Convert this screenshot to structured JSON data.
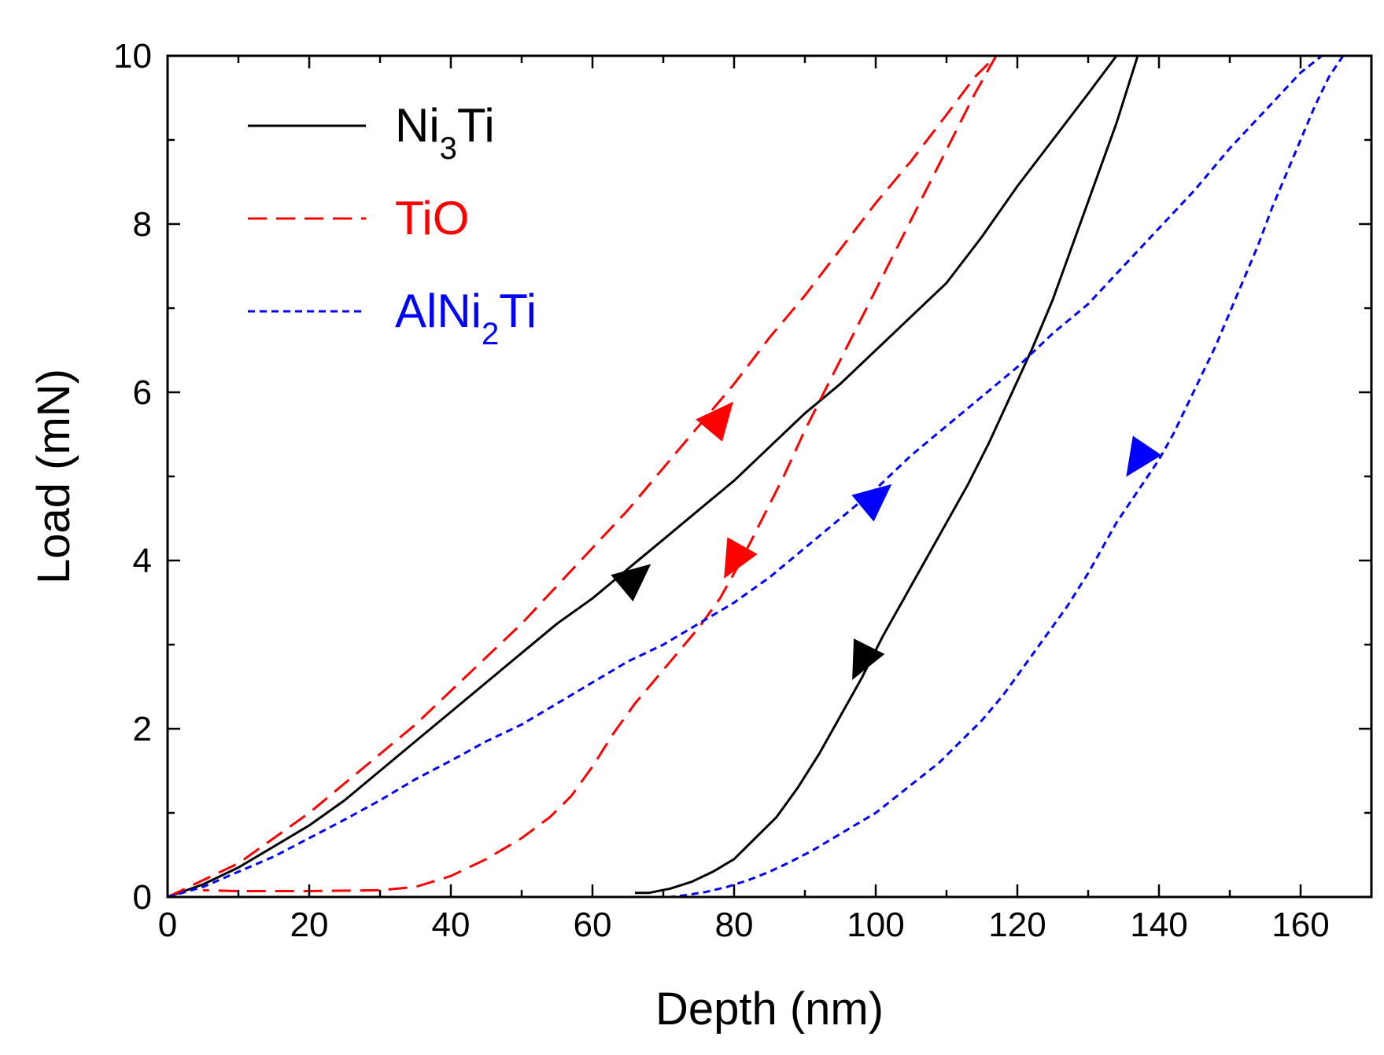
{
  "chart_data": {
    "type": "line",
    "title": "",
    "xlabel": "Depth (nm)",
    "ylabel": "Load (mN)",
    "xlim": [
      0,
      170
    ],
    "ylim": [
      0,
      10
    ],
    "xticks": [
      0,
      20,
      40,
      60,
      80,
      100,
      120,
      140,
      160
    ],
    "yticks": [
      0,
      2,
      4,
      6,
      8,
      10
    ],
    "grid": false,
    "legend_position": "top-left",
    "series": [
      {
        "name": "Ni3Ti",
        "label_main": "Ni",
        "label_sub": "3",
        "label_end": "Ti",
        "color": "#000000",
        "style": "solid",
        "loading": {
          "x": [
            0,
            5,
            10,
            15,
            20,
            25,
            30,
            35,
            40,
            45,
            50,
            55,
            60,
            65,
            70,
            75,
            80,
            85,
            90,
            95,
            100,
            105,
            110,
            115,
            120,
            125,
            130,
            134,
            137
          ],
          "y": [
            0,
            0.15,
            0.35,
            0.6,
            0.85,
            1.15,
            1.5,
            1.85,
            2.2,
            2.55,
            2.9,
            3.25,
            3.55,
            3.9,
            4.25,
            4.6,
            4.95,
            5.35,
            5.75,
            6.1,
            6.5,
            6.9,
            7.3,
            7.85,
            8.45,
            9.0,
            9.55,
            10.0,
            10.0
          ]
        },
        "unloading": {
          "x": [
            137,
            134,
            131,
            128,
            125,
            122,
            119,
            116,
            113,
            110,
            107,
            104,
            101,
            98,
            95,
            92,
            89,
            86,
            83,
            80,
            77,
            74,
            71,
            68,
            66
          ],
          "y": [
            10.0,
            9.2,
            8.5,
            7.8,
            7.1,
            6.5,
            5.95,
            5.4,
            4.9,
            4.45,
            4.0,
            3.55,
            3.1,
            2.6,
            2.15,
            1.7,
            1.3,
            0.95,
            0.7,
            0.45,
            0.3,
            0.18,
            0.1,
            0.05,
            0.05
          ]
        },
        "arrows": [
          {
            "x": 66,
            "y": 3.8,
            "direction": "up"
          },
          {
            "x": 98,
            "y": 2.8,
            "direction": "down"
          }
        ]
      },
      {
        "name": "TiO",
        "label_main": "TiO",
        "label_sub": "",
        "label_end": "",
        "color": "#ff0000",
        "style": "dashed",
        "loading": {
          "x": [
            0,
            5,
            10,
            15,
            20,
            25,
            30,
            35,
            40,
            45,
            50,
            55,
            60,
            65,
            70,
            75,
            80,
            85,
            90,
            95,
            100,
            105,
            110,
            114,
            117
          ],
          "y": [
            0,
            0.2,
            0.4,
            0.7,
            1.0,
            1.35,
            1.7,
            2.05,
            2.45,
            2.85,
            3.25,
            3.7,
            4.15,
            4.6,
            5.1,
            5.6,
            6.1,
            6.65,
            7.15,
            7.7,
            8.25,
            8.75,
            9.3,
            9.75,
            10.0
          ]
        },
        "unloading": {
          "x": [
            117,
            114,
            111,
            108,
            105,
            102,
            99,
            96,
            93,
            90,
            87,
            84,
            81,
            78,
            75,
            72,
            69,
            66,
            63,
            60,
            57,
            54,
            50,
            45,
            40,
            35,
            30,
            20,
            10,
            5
          ],
          "y": [
            10.0,
            9.55,
            9.05,
            8.55,
            8.05,
            7.55,
            7.05,
            6.55,
            6.05,
            5.55,
            5.0,
            4.5,
            4.0,
            3.55,
            3.2,
            2.9,
            2.6,
            2.3,
            1.95,
            1.55,
            1.2,
            0.95,
            0.7,
            0.45,
            0.25,
            0.12,
            0.08,
            0.07,
            0.07,
            0.08
          ]
        },
        "arrows": [
          {
            "x": 78,
            "y": 5.7,
            "direction": "up"
          },
          {
            "x": 80,
            "y": 4.0,
            "direction": "down"
          }
        ]
      },
      {
        "name": "AlNi2Ti",
        "label_main": "AlNi",
        "label_sub": "2",
        "label_end": "Ti",
        "color": "#0000ff",
        "style": "dotted",
        "loading": {
          "x": [
            0,
            5,
            10,
            15,
            20,
            25,
            30,
            35,
            40,
            45,
            50,
            55,
            60,
            65,
            70,
            75,
            80,
            85,
            90,
            95,
            100,
            105,
            110,
            115,
            120,
            125,
            130,
            135,
            140,
            145,
            150,
            155,
            160,
            163,
            166
          ],
          "y": [
            0,
            0.12,
            0.3,
            0.48,
            0.7,
            0.92,
            1.15,
            1.4,
            1.62,
            1.85,
            2.05,
            2.3,
            2.55,
            2.8,
            3.0,
            3.25,
            3.5,
            3.8,
            4.15,
            4.5,
            4.85,
            5.25,
            5.6,
            5.95,
            6.3,
            6.7,
            7.05,
            7.5,
            7.95,
            8.4,
            8.9,
            9.35,
            9.8,
            10.0,
            10.0
          ]
        },
        "unloading": {
          "x": [
            166,
            164,
            162,
            160,
            158,
            156,
            154,
            152,
            150,
            148,
            146,
            144,
            142,
            140,
            138,
            136,
            134,
            132,
            130,
            127,
            124,
            121,
            118,
            115,
            112,
            109,
            106,
            103,
            100,
            97,
            94,
            91,
            88,
            85,
            82,
            79,
            76,
            73,
            71
          ],
          "y": [
            10.0,
            9.75,
            9.4,
            9.0,
            8.6,
            8.2,
            7.75,
            7.35,
            6.95,
            6.55,
            6.2,
            5.85,
            5.5,
            5.2,
            4.95,
            4.7,
            4.45,
            4.15,
            3.85,
            3.45,
            3.1,
            2.75,
            2.4,
            2.1,
            1.85,
            1.6,
            1.4,
            1.2,
            1.0,
            0.85,
            0.7,
            0.55,
            0.42,
            0.3,
            0.2,
            0.12,
            0.06,
            0.02,
            0.0
          ]
        },
        "arrows": [
          {
            "x": 100,
            "y": 4.75,
            "direction": "up"
          },
          {
            "x": 137,
            "y": 5.2,
            "direction": "down"
          }
        ]
      }
    ]
  }
}
